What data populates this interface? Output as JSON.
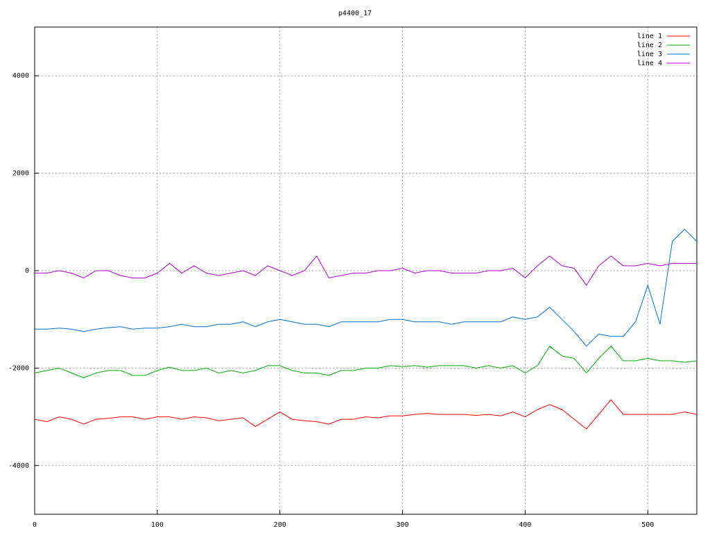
{
  "chart_data": {
    "type": "line",
    "title": "p4400_17",
    "x": [
      0,
      10,
      20,
      30,
      40,
      50,
      60,
      70,
      80,
      90,
      100,
      110,
      120,
      130,
      140,
      150,
      160,
      170,
      180,
      190,
      200,
      210,
      220,
      230,
      240,
      250,
      260,
      270,
      280,
      290,
      300,
      310,
      320,
      330,
      340,
      350,
      360,
      370,
      380,
      390,
      400,
      410,
      420,
      430,
      440,
      450,
      460,
      470,
      480,
      490,
      500,
      510,
      520,
      530,
      540
    ],
    "xlim": [
      0,
      540
    ],
    "xticks": [
      0,
      100,
      200,
      300,
      400,
      500
    ],
    "ylim": [
      -5000,
      5000
    ],
    "yticks": [
      -4000,
      -2000,
      0,
      2000,
      4000
    ],
    "grid": true,
    "legend": "top-right",
    "series": [
      {
        "name": "line 1",
        "color": "#ff0000",
        "values": [
          -3050,
          -3100,
          -3000,
          -3050,
          -3150,
          -3050,
          -3030,
          -3000,
          -3000,
          -3050,
          -3000,
          -3000,
          -3050,
          -3000,
          -3020,
          -3080,
          -3050,
          -3020,
          -3200,
          -3050,
          -2900,
          -3050,
          -3080,
          -3100,
          -3150,
          -3050,
          -3050,
          -3000,
          -3020,
          -2980,
          -2980,
          -2950,
          -2930,
          -2950,
          -2950,
          -2950,
          -2970,
          -2950,
          -2980,
          -2900,
          -3000,
          -2850,
          -2750,
          -2850,
          -3050,
          -3250,
          -2950,
          -2650,
          -2950,
          -2950,
          -2950,
          -2950,
          -2950,
          -2900,
          -2950
        ]
      },
      {
        "name": "line 2",
        "color": "#00b000",
        "values": [
          -2100,
          -2050,
          -2000,
          -2100,
          -2200,
          -2100,
          -2050,
          -2050,
          -2150,
          -2150,
          -2050,
          -1980,
          -2050,
          -2050,
          -2000,
          -2100,
          -2050,
          -2100,
          -2050,
          -1950,
          -1950,
          -2050,
          -2100,
          -2100,
          -2150,
          -2050,
          -2050,
          -2000,
          -2000,
          -1950,
          -1970,
          -1950,
          -1980,
          -1950,
          -1950,
          -1950,
          -2000,
          -1950,
          -2000,
          -1950,
          -2100,
          -1950,
          -1550,
          -1750,
          -1800,
          -2100,
          -1800,
          -1550,
          -1850,
          -1850,
          -1800,
          -1850,
          -1850,
          -1880,
          -1850
        ]
      },
      {
        "name": "line 3",
        "color": "#0070d0",
        "values": [
          -1200,
          -1200,
          -1180,
          -1200,
          -1250,
          -1200,
          -1170,
          -1150,
          -1200,
          -1180,
          -1180,
          -1150,
          -1100,
          -1150,
          -1150,
          -1100,
          -1100,
          -1050,
          -1150,
          -1050,
          -1000,
          -1050,
          -1100,
          -1100,
          -1150,
          -1050,
          -1050,
          -1050,
          -1050,
          -1000,
          -1000,
          -1050,
          -1050,
          -1050,
          -1100,
          -1050,
          -1050,
          -1050,
          -1050,
          -950,
          -1000,
          -950,
          -750,
          -1000,
          -1250,
          -1550,
          -1300,
          -1350,
          -1350,
          -1050,
          -300,
          -1100,
          600,
          850,
          600
        ]
      },
      {
        "name": "line 4",
        "color": "#b000d0",
        "values": [
          -50,
          -50,
          0,
          -50,
          -150,
          0,
          0,
          -100,
          -150,
          -150,
          -50,
          150,
          -50,
          100,
          -50,
          -100,
          -50,
          0,
          -100,
          100,
          0,
          -100,
          0,
          300,
          -150,
          -100,
          -50,
          -50,
          0,
          0,
          50,
          -50,
          0,
          0,
          -50,
          -50,
          -50,
          0,
          0,
          50,
          -150,
          100,
          300,
          100,
          50,
          -300,
          100,
          300,
          100,
          100,
          150,
          100,
          150,
          150,
          150
        ]
      }
    ]
  }
}
